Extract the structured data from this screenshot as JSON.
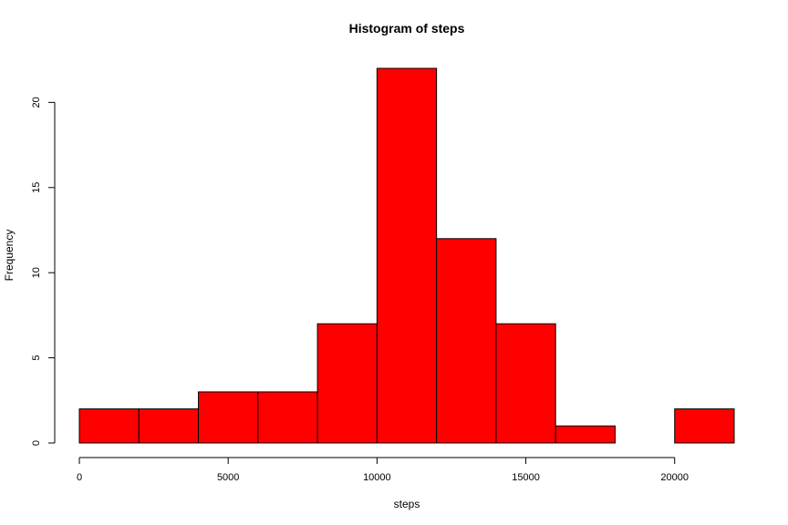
{
  "chart_data": {
    "type": "bar",
    "title": "Histogram of steps",
    "xlabel": "steps",
    "ylabel": "Frequency",
    "bin_edges": [
      0,
      2000,
      4000,
      6000,
      8000,
      10000,
      12000,
      14000,
      16000,
      18000,
      20000,
      22000
    ],
    "values": [
      2,
      2,
      3,
      3,
      7,
      22,
      12,
      7,
      1,
      0,
      2
    ],
    "xlim": [
      0,
      22000
    ],
    "ylim": [
      0,
      22
    ],
    "x_ticks": [
      0,
      5000,
      10000,
      15000,
      20000
    ],
    "y_ticks": [
      0,
      5,
      10,
      15,
      20
    ],
    "bar_color": "#ff0000",
    "border_color": "#000000",
    "grid": false,
    "legend": "none"
  }
}
